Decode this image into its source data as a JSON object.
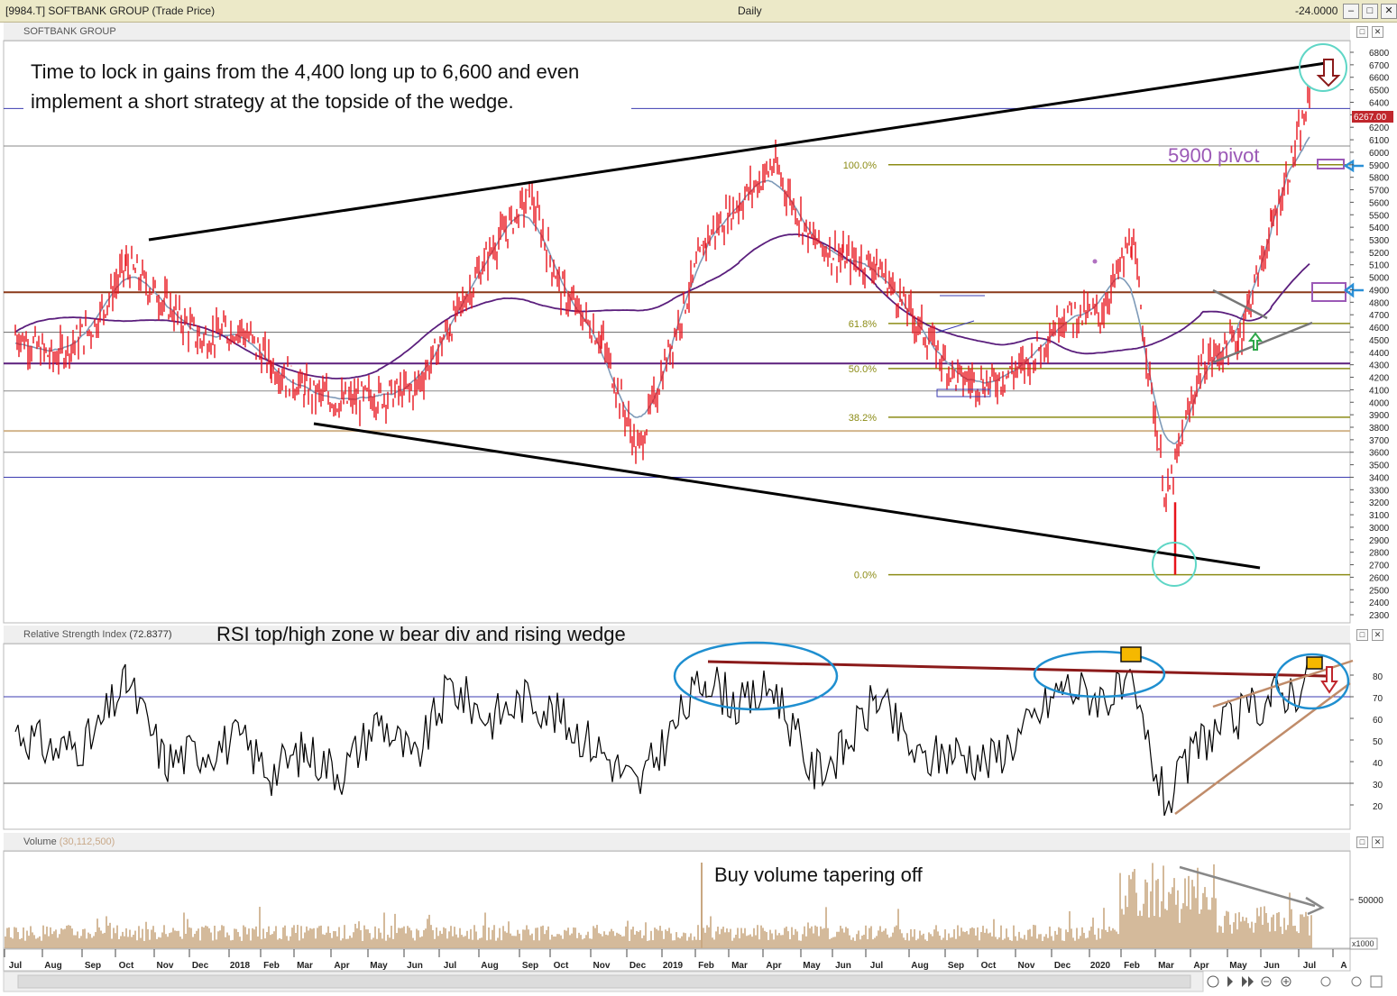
{
  "window": {
    "symbol": "[9984.T] SOFTBANK GROUP (Trade Price)",
    "period": "Daily",
    "change": "-24.0000",
    "buttons": [
      "–",
      "□",
      "✕"
    ]
  },
  "price_panel": {
    "label": "SOFTBANK GROUP",
    "last_price_tag": "6267.00",
    "annotation_main": [
      "Time to lock in gains from the 4,400 long up to 6,600 and even",
      "implement a short strategy at the topside of the wedge."
    ],
    "annotation_pivot": "5900 pivot",
    "fib_labels": [
      "100.0%",
      "61.8%",
      "50.0%",
      "38.2%",
      "0.0%"
    ]
  },
  "rsi_panel": {
    "label": "Relative Strength Index",
    "value": "(72.8377)",
    "annotation": "RSI top/high zone w bear div and rising wedge"
  },
  "volume_panel": {
    "label": "Volume",
    "value": "(30,112,500)",
    "annotation": "Buy volume tapering off",
    "scale_tag": "x1000"
  },
  "x_axis": {
    "months": [
      "Jul",
      "Aug",
      "Sep",
      "Oct",
      "Nov",
      "Dec",
      "2018",
      "Feb",
      "Mar",
      "Apr",
      "May",
      "Jun",
      "Jul",
      "Aug",
      "Sep",
      "Oct",
      "Nov",
      "Dec",
      "2019",
      "Feb",
      "Mar",
      "Apr",
      "May",
      "Jun",
      "Jul",
      "Aug",
      "Sep",
      "Oct",
      "Nov",
      "Dec",
      "2020",
      "Feb",
      "Mar",
      "Apr",
      "May",
      "Jun",
      "Jul",
      "A"
    ]
  },
  "colors": {
    "price_bars": "#e8141c",
    "fib_lines": "#8c8c16",
    "ma_fast": "#7e9ab8",
    "ma_slow": "#5b1f7d",
    "wedge": "#000000",
    "rsi_line": "#000000",
    "rsi_res_line": "#8b1a1a",
    "rsi_wedge": "#c08c6a",
    "ellipse": "#1f8fd0",
    "circle": "#5fd6c6",
    "volume_bars": "#c9a882",
    "pivot_box": "#9b59b6",
    "arrow_blue": "#2a8fd6",
    "arrow_red": "#c0262c",
    "arrow_green": "#2ea84a",
    "marker": "#f5b800"
  },
  "chart_data": [
    {
      "type": "line",
      "title": "SOFTBANK GROUP",
      "ylim": [
        2200,
        6850
      ],
      "y_ticks": [
        2300,
        2400,
        2500,
        2600,
        2700,
        2800,
        2900,
        3000,
        3100,
        3200,
        3300,
        3400,
        3500,
        3600,
        3700,
        3800,
        3900,
        4000,
        4100,
        4200,
        4300,
        4400,
        4500,
        4600,
        4700,
        4800,
        4900,
        5000,
        5100,
        5200,
        5300,
        5400,
        5500,
        5600,
        5700,
        5800,
        5900,
        6000,
        6100,
        6200,
        6300,
        6400,
        6500,
        6600,
        6700,
        6800
      ],
      "series": [
        {
          "x": [
            "Jul",
            "Aug",
            "Sep",
            "Oct",
            "Nov",
            "Dec",
            "2018",
            "Feb",
            "Mar",
            "Apr",
            "May",
            "Jun",
            "Jul",
            "Aug",
            "Sep",
            "Oct",
            "Nov",
            "Dec",
            "2019",
            "Feb",
            "Mar",
            "Apr",
            "May",
            "Jun",
            "Jul",
            "Aug",
            "Sep",
            "Oct",
            "Nov",
            "Dec",
            "2020",
            "Feb",
            "Mar",
            "Apr",
            "May",
            "Jun",
            "Jul"
          ],
          "values": [
            4550,
            4350,
            4600,
            5100,
            4800,
            4500,
            4600,
            4300,
            4100,
            4000,
            4050,
            4100,
            4600,
            5200,
            5650,
            4900,
            4500,
            3600,
            4500,
            5300,
            5600,
            5900,
            5300,
            5150,
            5100,
            4600,
            4200,
            4150,
            4300,
            4700,
            4700,
            5300,
            3200,
            4300,
            4500,
            5400,
            6400
          ]
        }
      ],
      "fib_levels": {
        "100.0%": 5900,
        "61.8%": 4630,
        "50.0%": 4270,
        "38.2%": 3880,
        "0.0%": 2620
      },
      "horizontal_levels": [
        6350,
        6050,
        4880,
        4560,
        4310,
        4090,
        3770,
        3600,
        3400
      ],
      "last_price": 6267.0
    },
    {
      "type": "line",
      "title": "Relative Strength Index",
      "ylim": [
        10,
        90
      ],
      "y_ticks": [
        20,
        30,
        40,
        50,
        60,
        70,
        80
      ],
      "reference_lines": [
        70,
        30
      ],
      "last_value": 72.8377,
      "series": [
        {
          "x": [
            "Jul",
            "Aug",
            "Sep",
            "Oct",
            "Nov",
            "Dec",
            "2018",
            "Feb",
            "Mar",
            "Apr",
            "May",
            "Jun",
            "Jul",
            "Aug",
            "Sep",
            "Oct",
            "Nov",
            "Dec",
            "2019",
            "Feb",
            "Mar",
            "Apr",
            "May",
            "Jun",
            "Jul",
            "Aug",
            "Sep",
            "Oct",
            "Nov",
            "Dec",
            "2020",
            "Feb",
            "Mar",
            "Apr",
            "May",
            "Jun",
            "Jul"
          ],
          "values": [
            55,
            45,
            50,
            78,
            40,
            45,
            50,
            35,
            45,
            35,
            60,
            40,
            75,
            60,
            70,
            60,
            45,
            28,
            55,
            80,
            65,
            75,
            35,
            45,
            70,
            40,
            45,
            40,
            55,
            75,
            70,
            72,
            20,
            50,
            60,
            70,
            76
          ]
        }
      ]
    },
    {
      "type": "bar",
      "title": "Volume",
      "y_ticks": [
        50000
      ],
      "last_value": 30112500
    }
  ]
}
